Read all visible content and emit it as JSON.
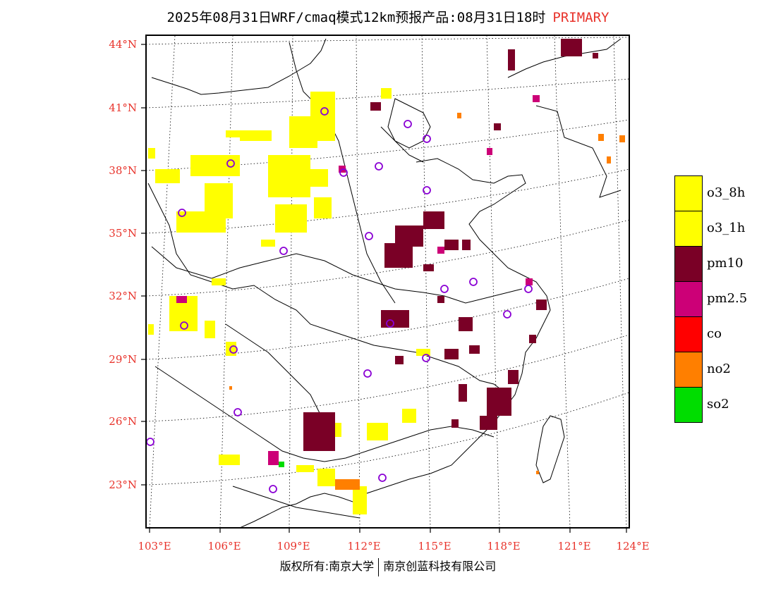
{
  "title": {
    "main": "2025年08月31日WRF/cmaq模式12km预报产品:08月31日18时",
    "highlight": "PRIMARY"
  },
  "axes": {
    "lat_labels": [
      "44°N",
      "41°N",
      "38°N",
      "35°N",
      "32°N",
      "29°N",
      "26°N",
      "23°N"
    ],
    "lon_labels": [
      "103°E",
      "106°E",
      "109°E",
      "112°E",
      "115°E",
      "118°E",
      "121°E",
      "124°E"
    ]
  },
  "legend": [
    {
      "label": "o3_8h",
      "color": "#ffff00"
    },
    {
      "label": "o3_1h",
      "color": "#ffff00"
    },
    {
      "label": "pm10",
      "color": "#7a0026"
    },
    {
      "label": "pm2.5",
      "color": "#cc0077"
    },
    {
      "label": "co",
      "color": "#ff0000"
    },
    {
      "label": "no2",
      "color": "#ff7f00"
    },
    {
      "label": "so2",
      "color": "#00dd00"
    }
  ],
  "credit": {
    "left": "版权所有:南京大学",
    "right": "南京创蓝科技有限公司"
  }
}
